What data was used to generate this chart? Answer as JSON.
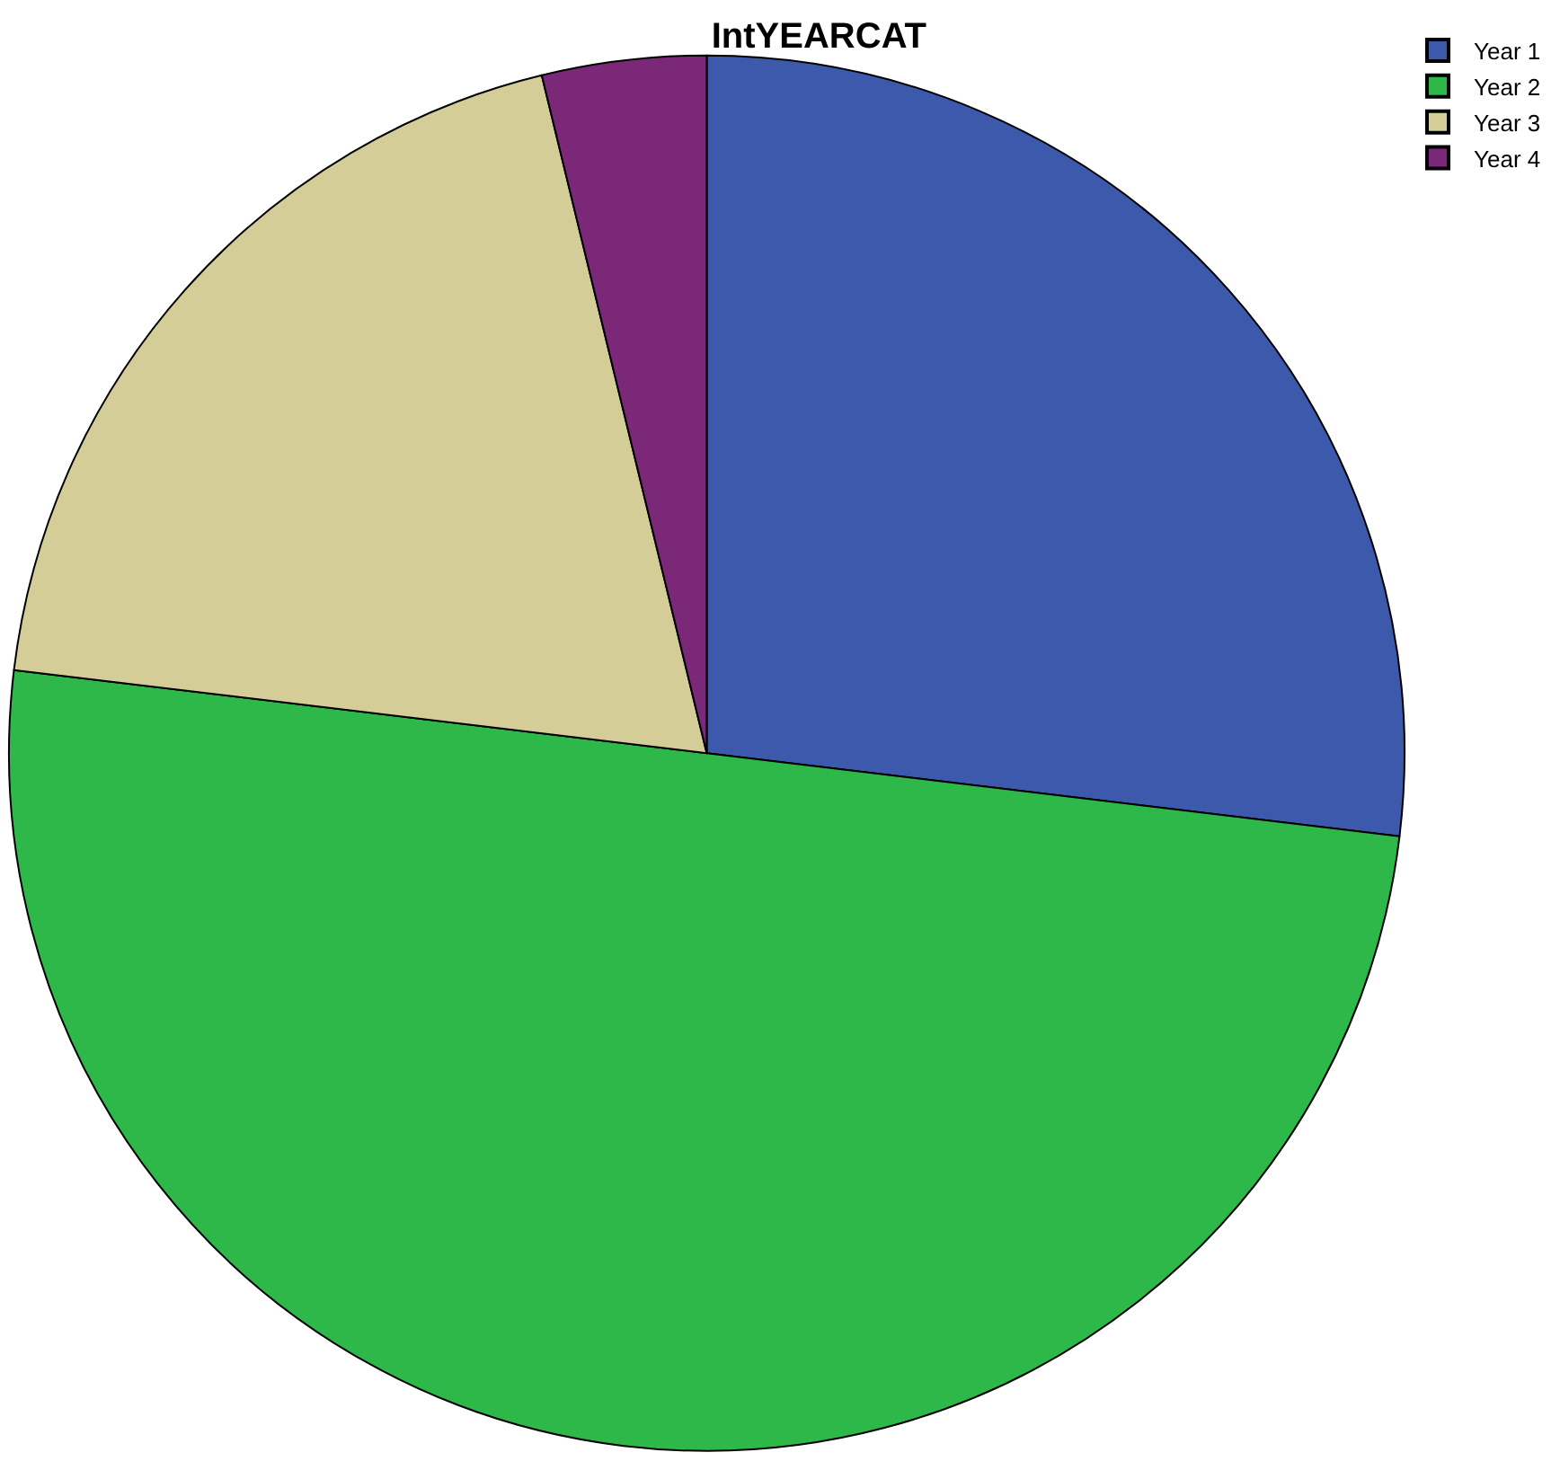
{
  "chart_data": {
    "type": "pie",
    "title": "IntYEARCAT",
    "categories": [
      "Year 1",
      "Year 2",
      "Year 3",
      "Year 4"
    ],
    "values": [
      26.9,
      50.0,
      19.3,
      3.8
    ],
    "colors": [
      "#3d59ab",
      "#2eb84a",
      "#d5cd98",
      "#7b2878"
    ],
    "legend": "top right"
  }
}
